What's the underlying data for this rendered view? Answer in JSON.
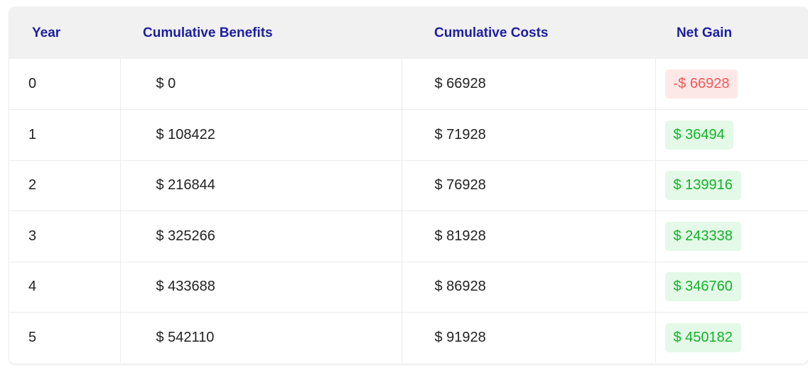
{
  "table": {
    "headers": {
      "year": "Year",
      "benefits": "Cumulative Benefits",
      "costs": "Cumulative Costs",
      "net": "Net Gain"
    },
    "rows": [
      {
        "year": "0",
        "benefits": "$ 0",
        "costs": "$ 66928",
        "net": "-$ 66928",
        "status": "negative"
      },
      {
        "year": "1",
        "benefits": "$ 108422",
        "costs": "$ 71928",
        "net": "$ 36494",
        "status": "positive"
      },
      {
        "year": "2",
        "benefits": "$ 216844",
        "costs": "$ 76928",
        "net": "$ 139916",
        "status": "positive"
      },
      {
        "year": "3",
        "benefits": "$ 325266",
        "costs": "$ 81928",
        "net": "$ 243338",
        "status": "positive"
      },
      {
        "year": "4",
        "benefits": "$ 433688",
        "costs": "$ 86928",
        "net": "$ 346760",
        "status": "positive"
      },
      {
        "year": "5",
        "benefits": "$ 542110",
        "costs": "$ 91928",
        "net": "$ 450182",
        "status": "positive"
      }
    ]
  },
  "colors": {
    "header_text": "#1c1fa0",
    "header_bg": "#f1f1f1",
    "negative_text": "#f05a5a",
    "negative_bg": "#fde8e8",
    "positive_text": "#12b22a",
    "positive_bg": "#e4f9e7"
  }
}
